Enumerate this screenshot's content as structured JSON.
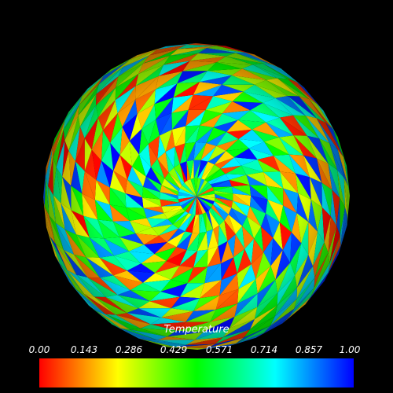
{
  "scalar_bar": {
    "title": "Temperature",
    "range": [
      0.0,
      1.0
    ],
    "labels": [
      "0.00",
      "0.143",
      "0.286",
      "0.429",
      "0.571",
      "0.714",
      "0.857",
      "1.00"
    ],
    "colormap": [
      "#ff0000",
      "#ff8000",
      "#ffff00",
      "#80ff00",
      "#00ff00",
      "#00ff80",
      "#00ffff",
      "#0080ff",
      "#0000ff"
    ]
  },
  "scene": {
    "background": "#000000",
    "object": "sphere",
    "colored_by": "Temperature"
  }
}
